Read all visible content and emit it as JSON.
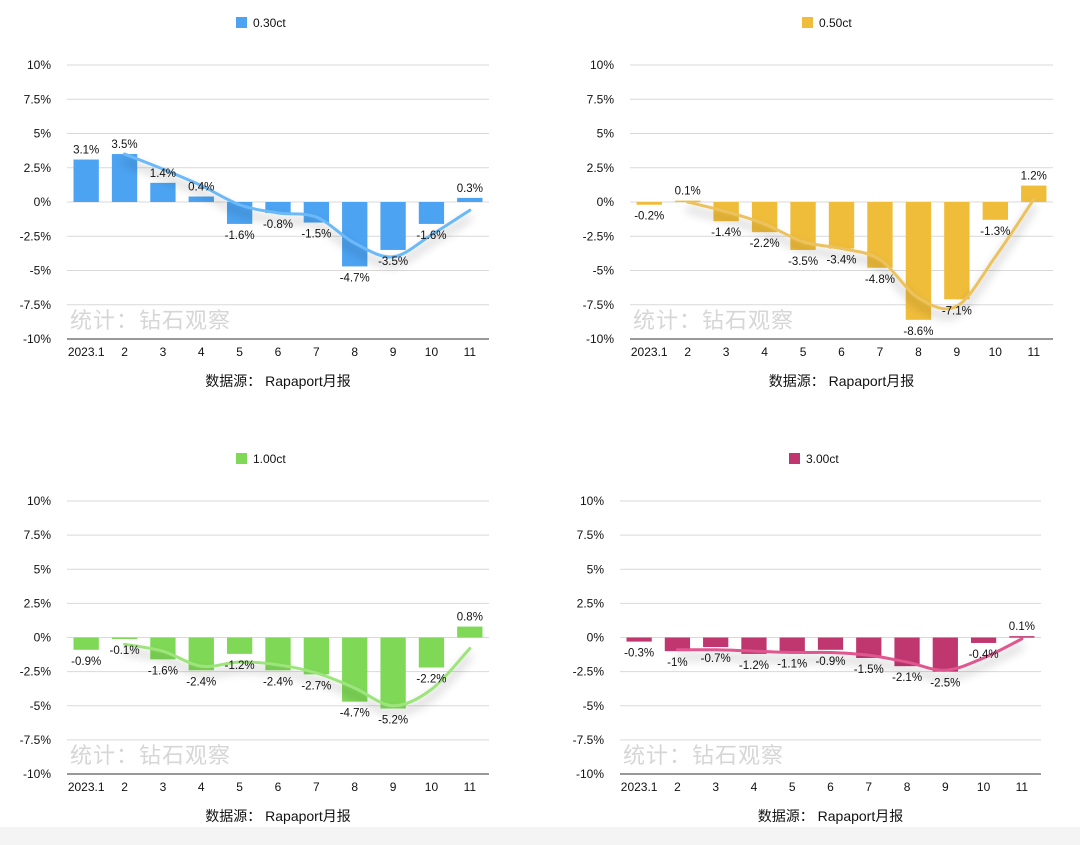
{
  "source_label": "数据源：  Rapaport月报",
  "watermark": "统计：钻石观察",
  "chart_data": [
    {
      "type": "bar",
      "legend": "0.30ct",
      "color": "#4ba3f2",
      "line_color": "#6cb9f7",
      "categories": [
        "2023.1",
        "2",
        "3",
        "4",
        "5",
        "6",
        "7",
        "8",
        "9",
        "10",
        "11"
      ],
      "values": [
        3.1,
        3.5,
        1.4,
        0.4,
        -1.6,
        -0.8,
        -1.5,
        -4.7,
        -3.5,
        -1.6,
        0.3
      ],
      "labels": [
        "3.1%",
        "3.5%",
        "1.4%",
        "0.4%",
        "-1.6%",
        "-0.8%",
        "-1.5%",
        "-4.7%",
        "-3.5%",
        "-1.6%",
        "0.3%"
      ],
      "trend": [
        null,
        3.5,
        2.4,
        1.2,
        -0.2,
        -0.8,
        -1.1,
        -3.0,
        -4.0,
        -2.4,
        -0.6
      ],
      "yticks": [
        "10%",
        "7.5%",
        "5%",
        "2.5%",
        "0%",
        "-2.5%",
        "-5%",
        "-7.5%",
        "-10%"
      ],
      "ylim": [
        -10,
        10
      ],
      "grid": true,
      "legend_position": "top"
    },
    {
      "type": "bar",
      "legend": "0.50ct",
      "color": "#f0bd3a",
      "line_color": "#ecc25e",
      "categories": [
        "2023.1",
        "2",
        "3",
        "4",
        "5",
        "6",
        "7",
        "8",
        "9",
        "10",
        "11"
      ],
      "values": [
        -0.2,
        0.1,
        -1.4,
        -2.2,
        -3.5,
        -3.4,
        -4.8,
        -8.6,
        -7.1,
        -1.3,
        1.2
      ],
      "labels": [
        "-0.2%",
        "0.1%",
        "-1.4%",
        "-2.2%",
        "-3.5%",
        "-3.4%",
        "-4.8%",
        "-8.6%",
        "-7.1%",
        "-1.3%",
        "1.2%"
      ],
      "trend": [
        null,
        0.0,
        -0.7,
        -1.6,
        -2.9,
        -3.4,
        -4.2,
        -7.0,
        -7.6,
        -4.0,
        0.2
      ],
      "yticks": [
        "10%",
        "7.5%",
        "5%",
        "2.5%",
        "0%",
        "-2.5%",
        "-5%",
        "-7.5%",
        "-10%"
      ],
      "ylim": [
        -10,
        10
      ],
      "grid": true,
      "legend_position": "top"
    },
    {
      "type": "bar",
      "legend": "1.00ct",
      "color": "#7fd957",
      "line_color": "#9ee47c",
      "categories": [
        "2023.1",
        "2",
        "3",
        "4",
        "5",
        "6",
        "7",
        "8",
        "9",
        "10",
        "11"
      ],
      "values": [
        -0.9,
        -0.1,
        -1.6,
        -2.4,
        -1.2,
        -2.4,
        -2.7,
        -4.7,
        -5.2,
        -2.2,
        0.8
      ],
      "labels": [
        "-0.9%",
        "-0.1%",
        "-1.6%",
        "-2.4%",
        "-1.2%",
        "-2.4%",
        "-2.7%",
        "-4.7%",
        "-5.2%",
        "-2.2%",
        "0.8%"
      ],
      "trend": [
        null,
        -0.5,
        -1.0,
        -2.1,
        -1.8,
        -2.0,
        -2.6,
        -3.7,
        -5.0,
        -3.8,
        -0.8
      ],
      "yticks": [
        "10%",
        "7.5%",
        "5%",
        "2.5%",
        "0%",
        "-2.5%",
        "-5%",
        "-7.5%",
        "-10%"
      ],
      "ylim": [
        -10,
        10
      ],
      "grid": true,
      "legend_position": "top"
    },
    {
      "type": "bar",
      "legend": "3.00ct",
      "color": "#c0376f",
      "line_color": "#e0568f",
      "categories": [
        "2023.1",
        "2",
        "3",
        "4",
        "5",
        "6",
        "7",
        "8",
        "9",
        "10",
        "11"
      ],
      "values": [
        -0.3,
        -1,
        -0.7,
        -1.2,
        -1.1,
        -0.9,
        -1.5,
        -2.1,
        -2.5,
        -0.4,
        0.1
      ],
      "labels": [
        "-0.3%",
        "-1%",
        "-0.7%",
        "-1.2%",
        "-1.1%",
        "-0.9%",
        "-1.5%",
        "-2.1%",
        "-2.5%",
        "-0.4%",
        "0.1%"
      ],
      "trend": [
        null,
        -0.9,
        -0.9,
        -1.0,
        -1.1,
        -1.1,
        -1.3,
        -1.8,
        -2.4,
        -1.5,
        -0.1
      ],
      "yticks": [
        "10%",
        "7.5%",
        "5%",
        "2.5%",
        "0%",
        "-2.5%",
        "-5%",
        "-7.5%",
        "-10%"
      ],
      "ylim": [
        -10,
        10
      ],
      "grid": true,
      "legend_position": "top"
    }
  ]
}
